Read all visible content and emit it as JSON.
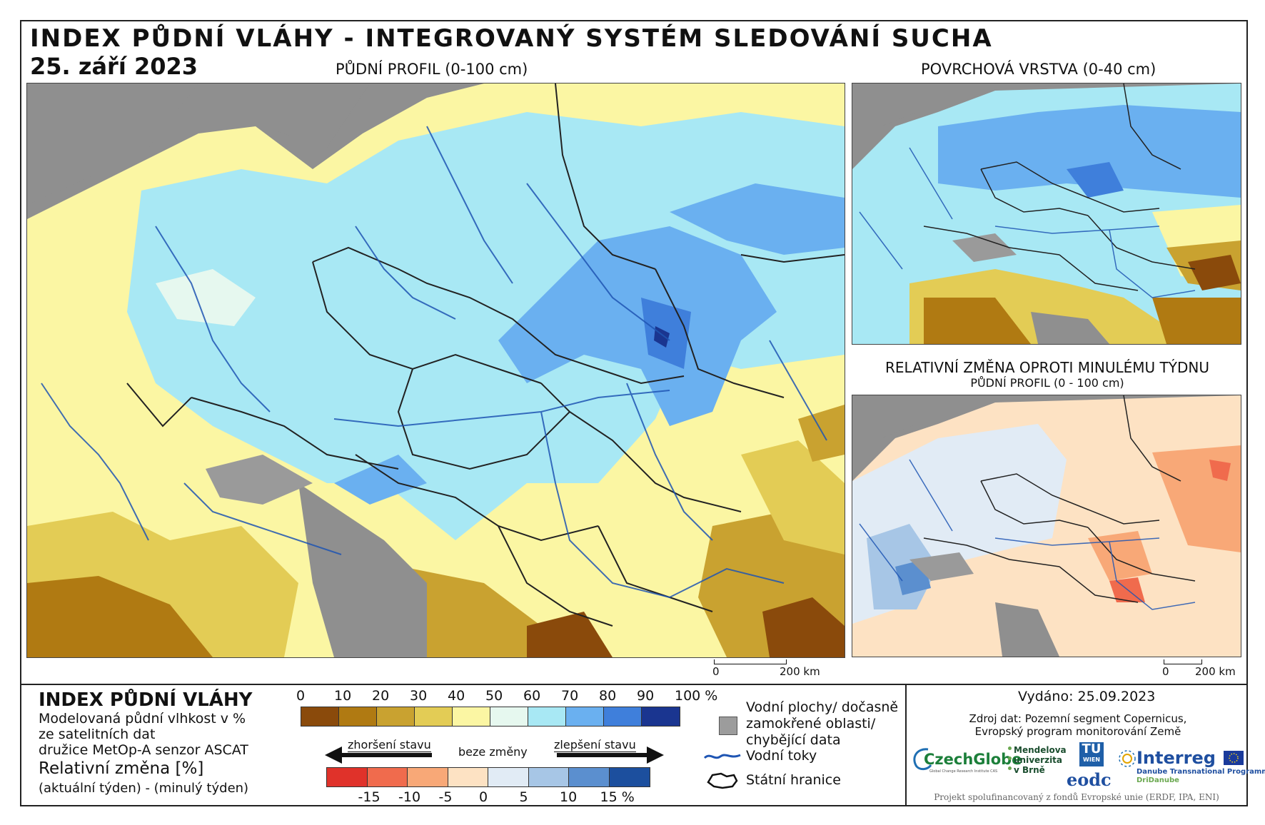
{
  "header": {
    "title": "INDEX PŮDNÍ VLÁHY - INTEGROVANÝ SYSTÉM SLEDOVÁNÍ SUCHA",
    "date": "25. září 2023"
  },
  "maps": {
    "main_caption": "PŮDNÍ PROFIL (0-100 cm)",
    "surface_caption": "POVRCHOVÁ VRSTVA (0-40 cm)",
    "change_caption": "RELATIVNÍ ZMĚNA OPROTI MINULÉMU TÝDNU",
    "change_subcaption": "PŮDNÍ PROFIL (0 - 100 cm)",
    "scale_main": {
      "zero": "0",
      "end": "200 km"
    },
    "scale_change": {
      "zero": "0",
      "end": "200 km"
    }
  },
  "legend": {
    "title": "INDEX PŮDNÍ VLÁHY",
    "desc_lines": [
      "Modelovaná půdní vlhkost v %",
      "ze satelitních dat",
      "družice MetOp-A senzor ASCAT"
    ],
    "change_title": "Relativní změna [%]",
    "change_desc": "(aktuální týden) - (minulý týden)",
    "index_ticks": [
      "0",
      "10",
      "20",
      "30",
      "40",
      "50",
      "60",
      "70",
      "80",
      "90",
      "100 %"
    ],
    "index_colors": [
      "#8a4a0b",
      "#b07a12",
      "#c9a230",
      "#e3cc55",
      "#fbf6a3",
      "#e6f8ef",
      "#a8e8f4",
      "#6ab0f0",
      "#3f7fdb",
      "#1a3590"
    ],
    "change_ticks": [
      "-15",
      "-10",
      "-5",
      "0",
      "5",
      "10",
      "15 %"
    ],
    "change_colors": [
      "#e0322a",
      "#f06b4d",
      "#f8a877",
      "#fde2c3",
      "#e1ebf5",
      "#a7c6e6",
      "#5b8fcf",
      "#1c4f9e"
    ],
    "worse": "zhoršení stavu",
    "nochange": "beze změny",
    "better": "zlepšení stavu",
    "symbols": {
      "water_lines": [
        "Vodní plochy/ dočasně",
        "zamokřené oblasti/",
        "chybějící data"
      ],
      "rivers": "Vodní toky",
      "borders": "Státní hranice"
    }
  },
  "footer": {
    "issued": "Vydáno: 25.09.2023",
    "source_lines": [
      "Zdroj dat: Pozemní segment Copernicus,",
      "Evropský program monitorování Země"
    ],
    "logos": {
      "czechglobe": "CzechGlobe",
      "czechglobe_sub": "Global Change Research Institute CAS",
      "mendel": [
        "Mendelova",
        "univerzita",
        "v Brně"
      ],
      "tu": "TU",
      "tu_sub": "WIEN",
      "eodc": "eodc",
      "interreg": "Interreg",
      "interreg_sub1": "Danube Transnational Programme",
      "interreg_sub2": "DriDanube"
    },
    "funding": "Projekt spolufinancovaný z fondů Evropské unie (ERDF, IPA, ENI)"
  }
}
